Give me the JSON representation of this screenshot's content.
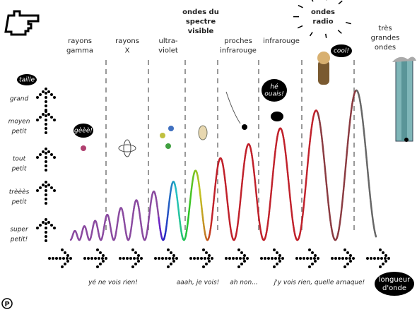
{
  "columns": [
    {
      "lines": [
        "rayons",
        "gamma"
      ]
    },
    {
      "lines": [
        "rayons",
        "X"
      ]
    },
    {
      "lines": [
        "ultra-",
        "violet"
      ]
    },
    {
      "lines": [
        "ondes du",
        "spectre",
        "visible"
      ]
    },
    {
      "lines": [
        "proches",
        "infrarouge"
      ]
    },
    {
      "lines": [
        "infrarouge"
      ]
    },
    {
      "lines": [
        "ondes",
        "radio"
      ]
    },
    {
      "lines": [
        "très",
        "grandes",
        "ondes"
      ]
    }
  ],
  "scale": {
    "title": "taille",
    "levels": [
      [
        "grand"
      ],
      [
        "moyen",
        "petit"
      ],
      [
        "tout",
        "petit"
      ],
      [
        "trèèès",
        "petit"
      ],
      [
        "super",
        "petit!"
      ]
    ]
  },
  "bubbles": [
    [
      "gèèè!"
    ],
    [
      "hé",
      "ouais!"
    ],
    [
      "cool!"
    ]
  ],
  "captions": [
    "yé ne vois rien!",
    "aaah, je vois!",
    "ah non...",
    "j'y vois rien, quelle arnaque!"
  ],
  "axis_label": [
    "longueur",
    "d'onde"
  ],
  "logo": "P"
}
